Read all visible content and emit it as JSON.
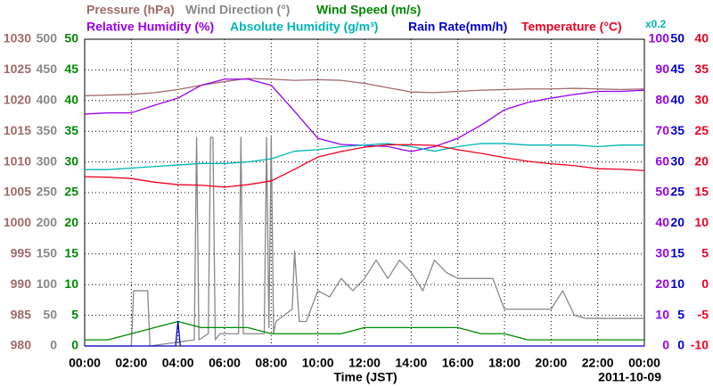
{
  "chart_data": {
    "type": "line",
    "x_label": "Time (JST)",
    "date": "2011-10-09",
    "x": [
      0,
      1,
      2,
      3,
      4,
      5,
      6,
      7,
      8,
      9,
      10,
      11,
      12,
      13,
      14,
      15,
      16,
      17,
      18,
      19,
      20,
      21,
      22,
      23,
      24
    ],
    "xlim": [
      0,
      24
    ],
    "xticks": [
      {
        "value": 0,
        "label": "00:00"
      },
      {
        "value": 2,
        "label": "02:00"
      },
      {
        "value": 4,
        "label": "04:00"
      },
      {
        "value": 6,
        "label": "06:00"
      },
      {
        "value": 8,
        "label": "08:00"
      },
      {
        "value": 10,
        "label": "10:00"
      },
      {
        "value": 12,
        "label": "12:00"
      },
      {
        "value": 14,
        "label": "14:00"
      },
      {
        "value": 16,
        "label": "16:00"
      },
      {
        "value": 18,
        "label": "18:00"
      },
      {
        "value": 20,
        "label": "20:00"
      },
      {
        "value": 22,
        "label": "22:00"
      },
      {
        "value": 24,
        "label": "00:00"
      }
    ],
    "grid": true,
    "series": [
      {
        "name": "Pressure (hPa)",
        "color": "#a06a6a",
        "ylim": [
          980,
          1030
        ],
        "yticks": [
          980,
          985,
          990,
          995,
          1000,
          1005,
          1010,
          1015,
          1020,
          1025,
          1030
        ],
        "values": [
          1020.8,
          1020.9,
          1021.0,
          1021.3,
          1021.8,
          1022.5,
          1023.1,
          1023.6,
          1023.5,
          1023.3,
          1023.4,
          1023.3,
          1022.8,
          1022.1,
          1021.4,
          1021.3,
          1021.5,
          1021.7,
          1021.8,
          1021.9,
          1021.9,
          1022.0,
          1021.9,
          1021.8,
          1021.9
        ]
      },
      {
        "name": "Wind Direction (°)",
        "color": "#888888",
        "ylim": [
          0,
          500
        ],
        "yticks": [
          0,
          50,
          100,
          150,
          200,
          250,
          300,
          350,
          400,
          450,
          500
        ],
        "x": [
          0,
          2.0,
          2.1,
          2.7,
          2.8,
          4.7,
          4.8,
          4.9,
          5.3,
          5.4,
          5.5,
          5.6,
          5.8,
          6.6,
          6.7,
          6.8,
          7.7,
          7.8,
          7.9,
          8.0,
          8.1,
          8.2,
          8.9,
          9.0,
          9.2,
          9.5,
          10.0,
          10.5,
          11.0,
          11.5,
          12.0,
          12.5,
          13.0,
          13.5,
          14.0,
          14.5,
          15.0,
          15.5,
          16.0,
          17.0,
          17.5,
          18.0,
          19.0,
          20.0,
          20.5,
          21.0,
          21.5,
          22.0,
          23.0,
          24.0
        ],
        "values": [
          0,
          0,
          90,
          90,
          0,
          10,
          340,
          10,
          20,
          340,
          340,
          10,
          20,
          20,
          340,
          20,
          20,
          340,
          30,
          340,
          20,
          40,
          60,
          155,
          40,
          40,
          90,
          80,
          110,
          90,
          110,
          140,
          110,
          140,
          120,
          90,
          140,
          120,
          110,
          110,
          110,
          60,
          60,
          60,
          90,
          50,
          45,
          45,
          45,
          45
        ]
      },
      {
        "name": "Wind Speed (m/s)",
        "color": "#008800",
        "ylim": [
          0,
          50
        ],
        "yticks": [
          0,
          5,
          10,
          15,
          20,
          25,
          30,
          35,
          40,
          45,
          50
        ],
        "values": [
          1,
          1,
          2,
          3,
          4,
          3,
          3,
          3,
          2,
          2,
          2,
          2,
          3,
          3,
          3,
          3,
          3,
          2,
          2,
          1,
          1,
          1,
          1,
          1,
          1
        ]
      },
      {
        "name": "Relative Humidity (%)",
        "color": "#9900ee",
        "ylim": [
          0,
          100
        ],
        "yticks": [
          0,
          10,
          20,
          30,
          40,
          50,
          60,
          70,
          80,
          90,
          100
        ],
        "values": [
          75.6,
          76,
          76,
          78.5,
          80.8,
          85,
          87,
          87,
          85,
          76.5,
          67.7,
          65.7,
          65.4,
          65,
          63.4,
          65,
          67.7,
          72,
          77,
          79.4,
          80.8,
          82,
          83,
          83,
          83.4
        ]
      },
      {
        "name": "Absolute Humidity (g/m³)",
        "color": "#00b4b4",
        "ylim": [
          0,
          20
        ],
        "scale_label": "x0.2",
        "values": [
          11.5,
          11.5,
          11.6,
          11.7,
          11.8,
          11.9,
          11.9,
          12.0,
          12.2,
          12.7,
          12.8,
          13.0,
          13.1,
          13.2,
          13.0,
          12.7,
          13.0,
          13.2,
          13.2,
          13.1,
          13.1,
          13.1,
          13.0,
          13.1,
          13.1
        ]
      },
      {
        "name": "Rain Rate(mm/h)",
        "color": "#0000cc",
        "ylim": [
          0,
          50
        ],
        "yticks": [
          0,
          5,
          10,
          15,
          20,
          25,
          30,
          35,
          40,
          45,
          50
        ],
        "x": [
          0,
          3.9,
          4.0,
          4.1,
          24
        ],
        "values": [
          0,
          0,
          4,
          0,
          0
        ]
      },
      {
        "name": "Temperature (°C)",
        "color": "#ee0022",
        "ylim": [
          -10,
          40
        ],
        "yticks": [
          -10,
          -5,
          0,
          5,
          10,
          15,
          20,
          25,
          30,
          35,
          40
        ],
        "values": [
          17.6,
          17.5,
          17.3,
          16.7,
          16.3,
          16.2,
          15.9,
          16.3,
          16.9,
          18.8,
          20.8,
          21.7,
          22.4,
          22.8,
          22.8,
          22.7,
          22.0,
          21.4,
          20.7,
          20.1,
          19.7,
          19.4,
          18.9,
          18.8,
          18.6
        ]
      }
    ]
  }
}
